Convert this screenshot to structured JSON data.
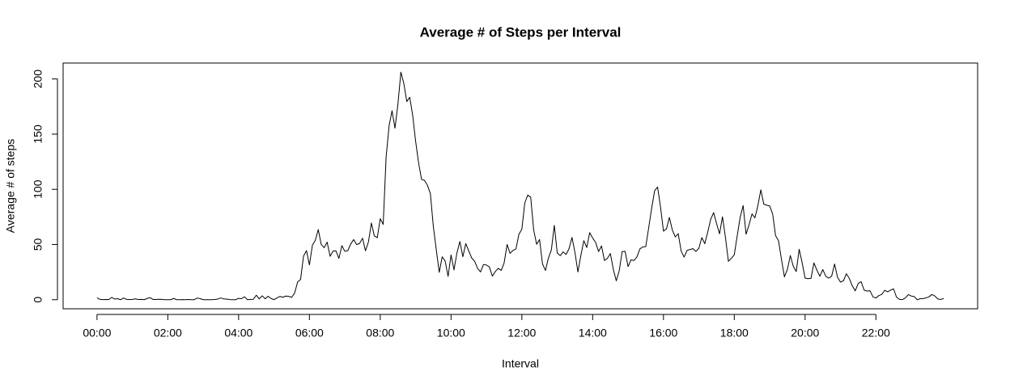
{
  "chart_data": {
    "type": "line",
    "title": "Average # of Steps per Interval",
    "x_label": "Interval",
    "y_label": "Average # of steps",
    "color": "#000000",
    "xlim": [
      -57.4,
      1492.4
    ],
    "ylim": [
      -8.25,
      214.42
    ],
    "xticks": [
      {
        "value": 0,
        "label": "00:00"
      },
      {
        "value": 120,
        "label": "02:00"
      },
      {
        "value": 240,
        "label": "04:00"
      },
      {
        "value": 360,
        "label": "06:00"
      },
      {
        "value": 480,
        "label": "08:00"
      },
      {
        "value": 600,
        "label": "10:00"
      },
      {
        "value": 720,
        "label": "12:00"
      },
      {
        "value": 840,
        "label": "14:00"
      },
      {
        "value": 960,
        "label": "16:00"
      },
      {
        "value": 1080,
        "label": "18:00"
      },
      {
        "value": 1200,
        "label": "20:00"
      },
      {
        "value": 1320,
        "label": "22:00"
      }
    ],
    "yticks": [
      0,
      50,
      100,
      150,
      200
    ],
    "x": [
      0,
      5,
      10,
      15,
      20,
      25,
      30,
      35,
      40,
      45,
      50,
      55,
      60,
      65,
      70,
      75,
      80,
      85,
      90,
      95,
      100,
      105,
      110,
      115,
      120,
      125,
      130,
      135,
      140,
      145,
      150,
      155,
      160,
      165,
      170,
      175,
      180,
      185,
      190,
      195,
      200,
      205,
      210,
      215,
      220,
      225,
      230,
      235,
      240,
      245,
      250,
      255,
      260,
      265,
      270,
      275,
      280,
      285,
      290,
      295,
      300,
      305,
      310,
      315,
      320,
      325,
      330,
      335,
      340,
      345,
      350,
      355,
      360,
      365,
      370,
      375,
      380,
      385,
      390,
      395,
      400,
      405,
      410,
      415,
      420,
      425,
      430,
      435,
      440,
      445,
      450,
      455,
      460,
      465,
      470,
      475,
      480,
      485,
      490,
      495,
      500,
      505,
      510,
      515,
      520,
      525,
      530,
      535,
      540,
      545,
      550,
      555,
      560,
      565,
      570,
      575,
      580,
      585,
      590,
      595,
      600,
      605,
      610,
      615,
      620,
      625,
      630,
      635,
      640,
      645,
      650,
      655,
      660,
      665,
      670,
      675,
      680,
      685,
      690,
      695,
      700,
      705,
      710,
      715,
      720,
      725,
      730,
      735,
      740,
      745,
      750,
      755,
      760,
      765,
      770,
      775,
      780,
      785,
      790,
      795,
      800,
      805,
      810,
      815,
      820,
      825,
      830,
      835,
      840,
      845,
      850,
      855,
      860,
      865,
      870,
      875,
      880,
      885,
      890,
      895,
      900,
      905,
      910,
      915,
      920,
      925,
      930,
      935,
      940,
      945,
      950,
      955,
      960,
      965,
      970,
      975,
      980,
      985,
      990,
      995,
      1000,
      1005,
      1010,
      1015,
      1020,
      1025,
      1030,
      1035,
      1040,
      1045,
      1050,
      1055,
      1060,
      1065,
      1070,
      1075,
      1080,
      1085,
      1090,
      1095,
      1100,
      1105,
      1110,
      1115,
      1120,
      1125,
      1130,
      1135,
      1140,
      1145,
      1150,
      1155,
      1160,
      1165,
      1170,
      1175,
      1180,
      1185,
      1190,
      1195,
      1200,
      1205,
      1210,
      1215,
      1220,
      1225,
      1230,
      1235,
      1240,
      1245,
      1250,
      1255,
      1260,
      1265,
      1270,
      1275,
      1280,
      1285,
      1290,
      1295,
      1300,
      1305,
      1310,
      1315,
      1320,
      1325,
      1330,
      1335,
      1340,
      1345,
      1350,
      1355,
      1360,
      1365,
      1370,
      1375,
      1380,
      1385,
      1390,
      1395,
      1400,
      1405,
      1410,
      1415,
      1420,
      1425,
      1430,
      1435
    ],
    "values": [
      1.7,
      0.3,
      0.1,
      0.2,
      0.1,
      2.1,
      0.5,
      0.9,
      0,
      1.5,
      0.3,
      0.1,
      0.3,
      0.7,
      0.2,
      0.3,
      0,
      1.1,
      1.8,
      0.2,
      0.2,
      0.4,
      0.3,
      0,
      0,
      0,
      1.1,
      0,
      0,
      0.1,
      0,
      0.2,
      0,
      0,
      1.5,
      0.9,
      0,
      0,
      0,
      0,
      0.2,
      0.6,
      1.6,
      0.6,
      0.5,
      0.1,
      0,
      0,
      1.2,
      0.9,
      2.6,
      0,
      0.3,
      0.4,
      4.1,
      0.7,
      3.5,
      0.8,
      3.1,
      1.1,
      0,
      1.6,
      3,
      2.2,
      3.3,
      3,
      2.1,
      6.1,
      16,
      18.3,
      39.5,
      44.5,
      31.5,
      49.3,
      53.8,
      63.5,
      50,
      47.1,
      52.2,
      39.3,
      44,
      44.2,
      37.4,
      49,
      43.8,
      44.4,
      50.5,
      54.5,
      49.9,
      51,
      55.7,
      44.3,
      52.3,
      69.5,
      57.8,
      56.2,
      73.4,
      68.2,
      129.4,
      157.5,
      171.2,
      155.4,
      177.3,
      206.2,
      195.9,
      179.6,
      183.4,
      167,
      143.5,
      124,
      109.1,
      108.1,
      103.7,
      96,
      66.2,
      45.2,
      24.8,
      38.8,
      35,
      21.1,
      40.6,
      27,
      42.4,
      52.7,
      38.9,
      50.8,
      44.3,
      37.8,
      34.7,
      28.3,
      25.1,
      31.9,
      31.4,
      29.7,
      21.3,
      25.5,
      28.4,
      26.5,
      33.4,
      50,
      42,
      44.6,
      46,
      59.2,
      63.9,
      87.7,
      94.8,
      92.8,
      63.4,
      50.2,
      54.5,
      32.4,
      26.5,
      37.7,
      45.1,
      67.3,
      42.3,
      39.9,
      43.3,
      41,
      46.2,
      56.4,
      42.8,
      25.1,
      40,
      53.5,
      47.3,
      60.8,
      55.8,
      52,
      43.6,
      48.7,
      35.5,
      37.5,
      41.8,
      27.5,
      17.1,
      26.1,
      43.6,
      43.8,
      30,
      36.1,
      35.5,
      38.8,
      46,
      47.8,
      48.1,
      65.3,
      82.9,
      98.7,
      102.1,
      84,
      62.1,
      64.1,
      74.5,
      63.2,
      56.9,
      59.8,
      43.9,
      38.6,
      44.7,
      45.5,
      46.2,
      43.7,
      46.6,
      56.3,
      50.7,
      61.2,
      72.7,
      78.9,
      68.9,
      59.7,
      75.1,
      56.5,
      34.8,
      37.5,
      40.7,
      58,
      74.7,
      85.3,
      59.3,
      67.8,
      77.7,
      74.2,
      85.3,
      99.5,
      86.6,
      85.6,
      84.9,
      77.8,
      58,
      53.4,
      36.3,
      20.7,
      27.4,
      40,
      30.2,
      25.5,
      45.7,
      33.5,
      19.6,
      19,
      19.3,
      33.3,
      26.8,
      21.2,
      27.3,
      21.3,
      19.5,
      21.3,
      32.3,
      20.2,
      15.9,
      17.2,
      23.5,
      19.2,
      12.5,
      8,
      14.7,
      16.3,
      8.7,
      7.8,
      8.1,
      2.6,
      1.5,
      3.7,
      4.8,
      8.5,
      7.1,
      8.7,
      9.8,
      2.2,
      0.3,
      0.1,
      1.6,
      4.6,
      3.3,
      2.8,
      0,
      0.8,
      1,
      1.6,
      2.6,
      4.7,
      3.3,
      0.6,
      0.2,
      1.1
    ]
  }
}
